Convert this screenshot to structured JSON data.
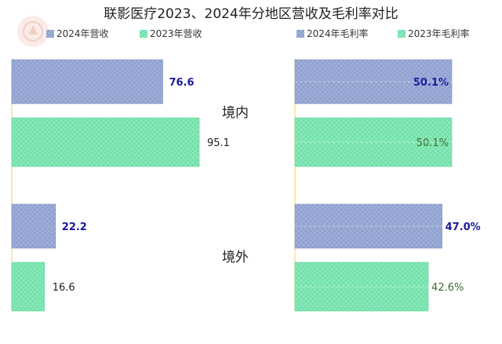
{
  "chart_data": [
    {
      "type": "bar",
      "orientation": "horizontal",
      "title": "联影医疗2023、2024年分地区营收及毛利率对比",
      "categories": [
        "境内",
        "境外"
      ],
      "series": [
        {
          "name": "2024年营收",
          "values": [
            76.6,
            22.2
          ],
          "color": "#8fa0cf"
        },
        {
          "name": "2023年营收",
          "values": [
            95.1,
            16.6
          ],
          "color": "#6fe0a8"
        }
      ],
      "xlim": [
        0,
        100
      ],
      "value_labels": {
        "2024年营收": [
          "76.6",
          "22.2"
        ],
        "2023年营收": [
          "95.1",
          "16.6"
        ]
      },
      "legend_position": "top",
      "grid": false
    },
    {
      "type": "bar",
      "orientation": "horizontal",
      "categories": [
        "境内",
        "境外"
      ],
      "series": [
        {
          "name": "2024年毛利率",
          "values": [
            50.1,
            47.0
          ],
          "color": "#8fa0cf"
        },
        {
          "name": "2023年毛利率",
          "values": [
            50.1,
            42.6
          ],
          "color": "#6fe0a8"
        }
      ],
      "xlim": [
        0,
        50.1
      ],
      "value_labels": {
        "2024年毛利率": [
          "50.1%",
          "47.0%"
        ],
        "2023年毛利率": [
          "50.1%",
          "42.6%"
        ]
      },
      "legend_position": "top",
      "grid": false
    }
  ],
  "colors": {
    "series_2024": "#8fa0cf",
    "series_2023": "#6fe0a8",
    "label_2024": "#1a1a9c",
    "label_2023_margin": "#3a6b2a",
    "axis_line": "#f0d060"
  }
}
